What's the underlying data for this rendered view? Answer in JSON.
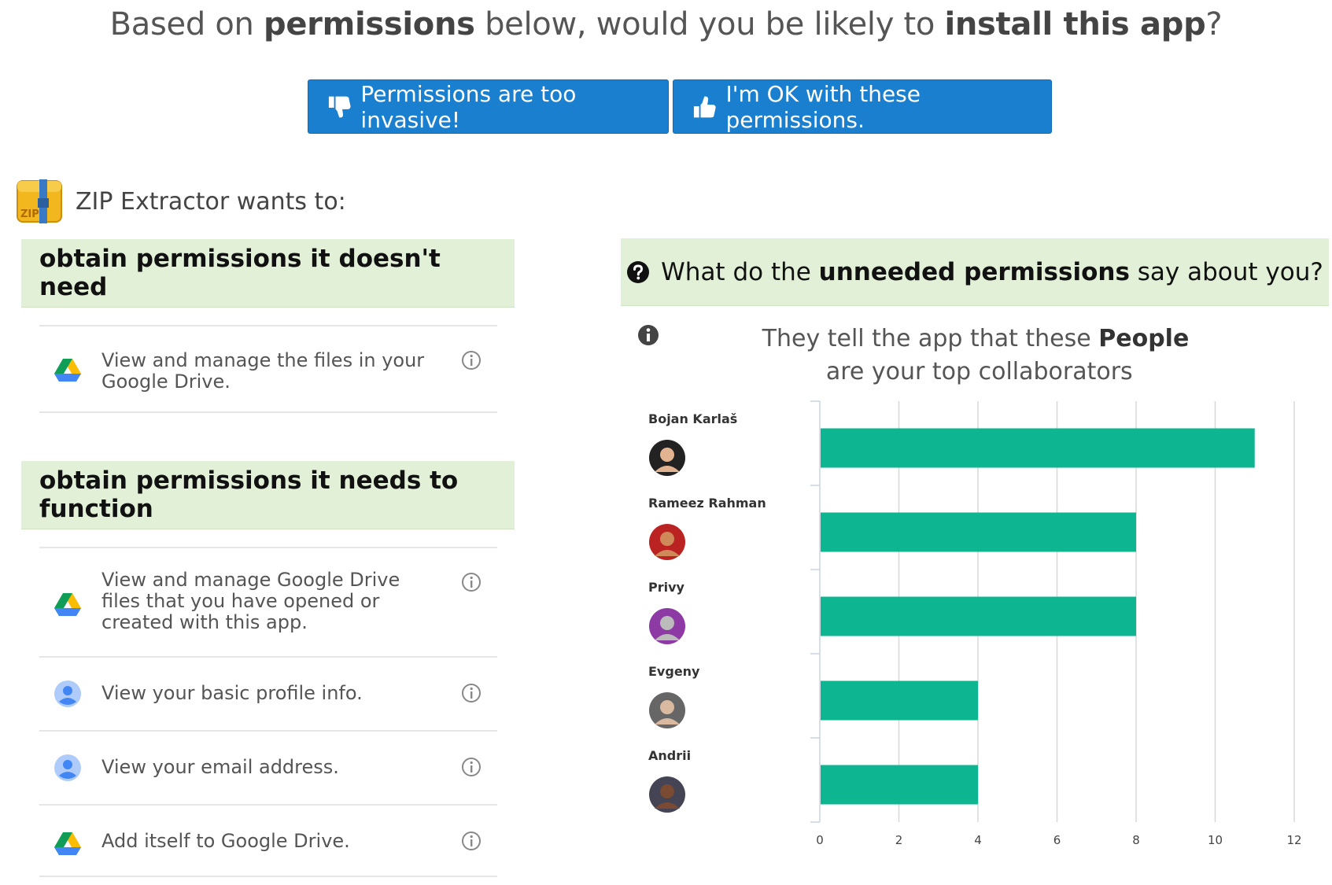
{
  "headline": {
    "part1": "Based on ",
    "bold1": "permissions",
    "part2": " below, would you be likely to ",
    "bold2": "install this app",
    "part3": "?"
  },
  "buttons": {
    "invasive": "Permissions are too invasive!",
    "ok": "I'm OK with these permissions."
  },
  "app": {
    "label": "ZIP Extractor wants to:",
    "icon": "zip-archive-icon",
    "icon_text": "ZIP"
  },
  "sections": {
    "unneeded": {
      "title": "obtain permissions it doesn't need",
      "items": [
        {
          "icon": "google-drive-icon",
          "text": "View and manage the files in your Google Drive."
        }
      ]
    },
    "needed": {
      "title": "obtain permissions it needs to function",
      "items": [
        {
          "icon": "google-drive-icon",
          "text": "View and manage Google Drive files that you have opened or created with this app."
        },
        {
          "icon": "profile-icon",
          "text": "View your basic profile info."
        },
        {
          "icon": "profile-icon",
          "text": "View your email address."
        },
        {
          "icon": "google-drive-icon",
          "text": "Add itself to Google Drive."
        }
      ]
    }
  },
  "question": {
    "part1": "What do the ",
    "bold": "unneeded permissions",
    "part2": " say about you?"
  },
  "chart_title": {
    "part1": "They tell the app that these ",
    "bold": "People",
    "part2": " are your top collaborators"
  },
  "chart_data": {
    "type": "bar",
    "orientation": "horizontal",
    "categories": [
      "Bojan Karlaš",
      "Rameez Rahman",
      "Privy",
      "Evgeny",
      "Andrii"
    ],
    "values": [
      11,
      8,
      8,
      4,
      4
    ],
    "xlim": [
      0,
      12
    ],
    "x_ticks": [
      0,
      2,
      4,
      6,
      8,
      10,
      12
    ],
    "grid": true,
    "bar_color": "#0db591"
  },
  "colors": {
    "button": "#1b7fcf",
    "section_bg": "#e1f0d7",
    "bar": "#0db591"
  }
}
